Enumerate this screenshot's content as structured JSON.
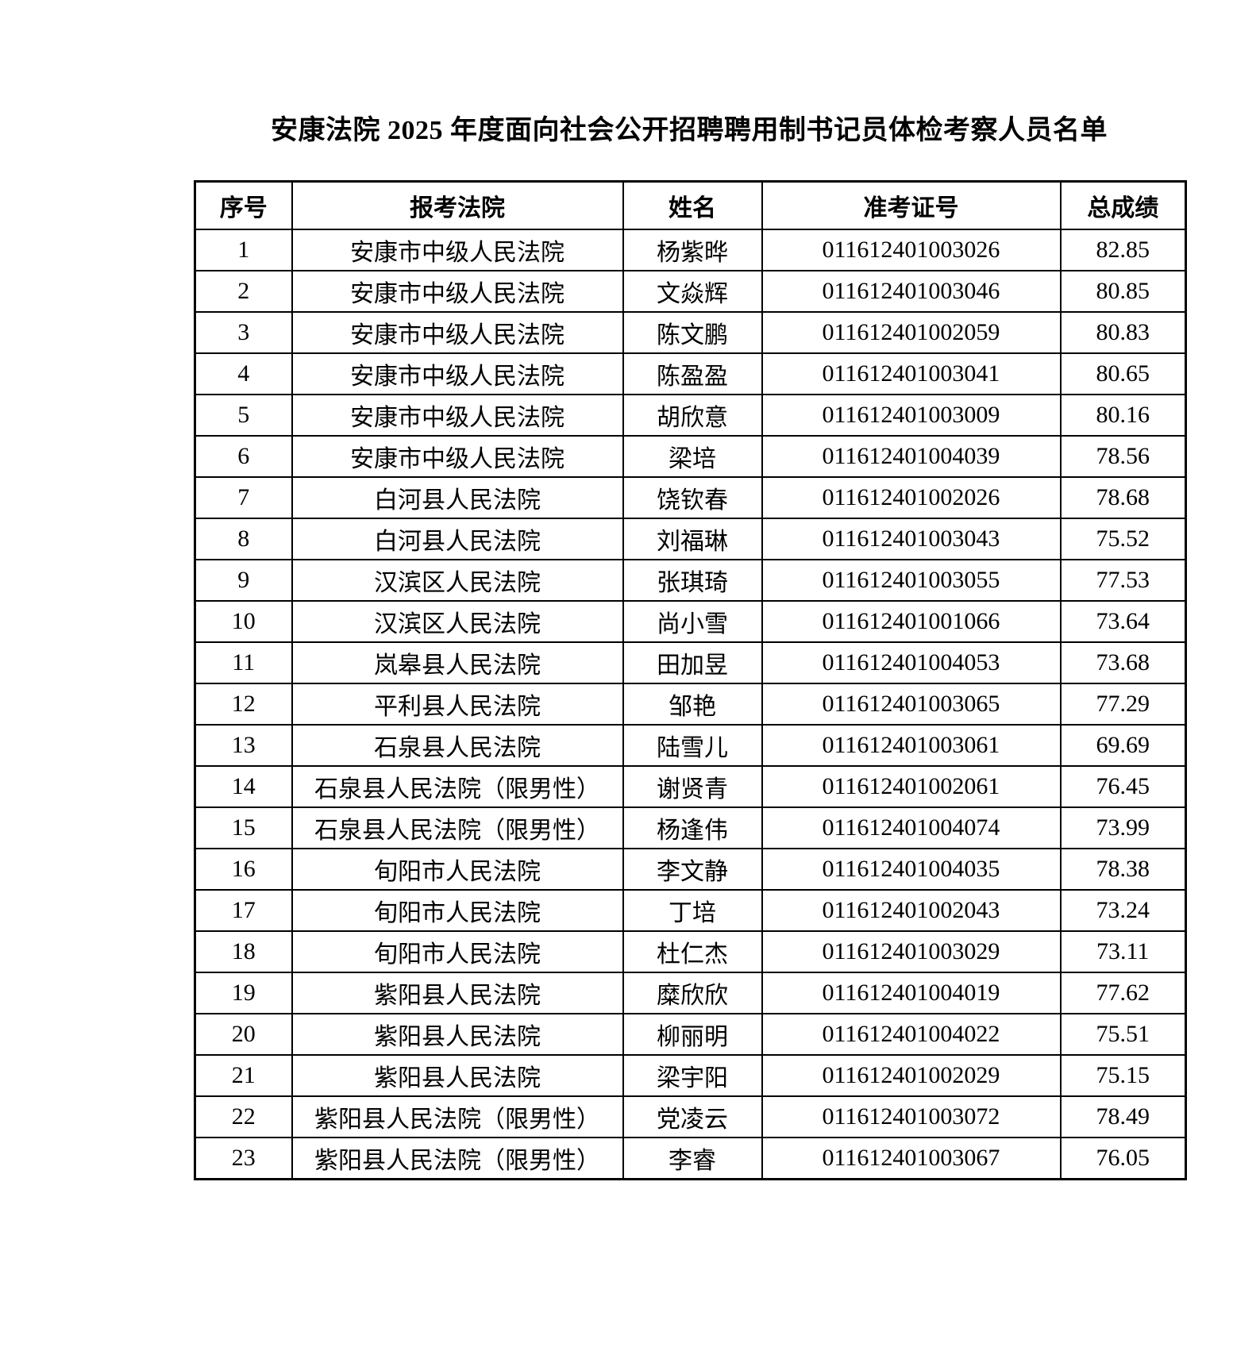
{
  "page": {
    "title": "安康法院 2025 年度面向社会公开招聘聘用制书记员体检考察人员名单"
  },
  "table": {
    "headers": [
      "序号",
      "报考法院",
      "姓名",
      "准考证号",
      "总成绩"
    ],
    "rows": [
      {
        "no": "1",
        "court": "安康市中级人民法院",
        "name": "杨紫晔",
        "ticket": "011612401003026",
        "score": "82.85"
      },
      {
        "no": "2",
        "court": "安康市中级人民法院",
        "name": "文焱辉",
        "ticket": "011612401003046",
        "score": "80.85"
      },
      {
        "no": "3",
        "court": "安康市中级人民法院",
        "name": "陈文鹏",
        "ticket": "011612401002059",
        "score": "80.83"
      },
      {
        "no": "4",
        "court": "安康市中级人民法院",
        "name": "陈盈盈",
        "ticket": "011612401003041",
        "score": "80.65"
      },
      {
        "no": "5",
        "court": "安康市中级人民法院",
        "name": "胡欣意",
        "ticket": "011612401003009",
        "score": "80.16"
      },
      {
        "no": "6",
        "court": "安康市中级人民法院",
        "name": "梁培",
        "ticket": "011612401004039",
        "score": "78.56"
      },
      {
        "no": "7",
        "court": "白河县人民法院",
        "name": "饶钦春",
        "ticket": "011612401002026",
        "score": "78.68"
      },
      {
        "no": "8",
        "court": "白河县人民法院",
        "name": "刘福琳",
        "ticket": "011612401003043",
        "score": "75.52"
      },
      {
        "no": "9",
        "court": "汉滨区人民法院",
        "name": "张琪琦",
        "ticket": "011612401003055",
        "score": "77.53"
      },
      {
        "no": "10",
        "court": "汉滨区人民法院",
        "name": "尚小雪",
        "ticket": "011612401001066",
        "score": "73.64"
      },
      {
        "no": "11",
        "court": "岚皋县人民法院",
        "name": "田加昱",
        "ticket": "011612401004053",
        "score": "73.68"
      },
      {
        "no": "12",
        "court": "平利县人民法院",
        "name": "邹艳",
        "ticket": "011612401003065",
        "score": "77.29"
      },
      {
        "no": "13",
        "court": "石泉县人民法院",
        "name": "陆雪儿",
        "ticket": "011612401003061",
        "score": "69.69"
      },
      {
        "no": "14",
        "court": "石泉县人民法院（限男性）",
        "name": "谢贤青",
        "ticket": "011612401002061",
        "score": "76.45"
      },
      {
        "no": "15",
        "court": "石泉县人民法院（限男性）",
        "name": "杨逢伟",
        "ticket": "011612401004074",
        "score": "73.99"
      },
      {
        "no": "16",
        "court": "旬阳市人民法院",
        "name": "李文静",
        "ticket": "011612401004035",
        "score": "78.38"
      },
      {
        "no": "17",
        "court": "旬阳市人民法院",
        "name": "丁培",
        "ticket": "011612401002043",
        "score": "73.24"
      },
      {
        "no": "18",
        "court": "旬阳市人民法院",
        "name": "杜仁杰",
        "ticket": "011612401003029",
        "score": "73.11"
      },
      {
        "no": "19",
        "court": "紫阳县人民法院",
        "name": "糜欣欣",
        "ticket": "011612401004019",
        "score": "77.62"
      },
      {
        "no": "20",
        "court": "紫阳县人民法院",
        "name": "柳丽明",
        "ticket": "011612401004022",
        "score": "75.51"
      },
      {
        "no": "21",
        "court": "紫阳县人民法院",
        "name": "梁宇阳",
        "ticket": "011612401002029",
        "score": "75.15"
      },
      {
        "no": "22",
        "court": "紫阳县人民法院（限男性）",
        "name": "党凌云",
        "ticket": "011612401003072",
        "score": "78.49"
      },
      {
        "no": "23",
        "court": "紫阳县人民法院（限男性）",
        "name": "李睿",
        "ticket": "011612401003067",
        "score": "76.05"
      }
    ]
  }
}
